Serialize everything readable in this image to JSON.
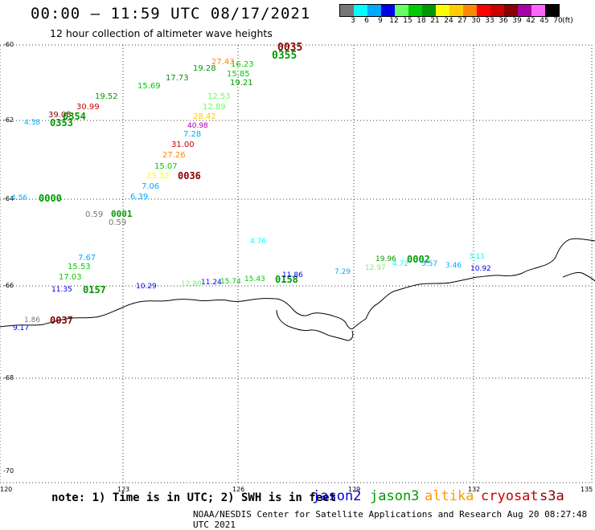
{
  "title": "00:00 – 11:59 UTC 08/17/2021",
  "subtitle": "12 hour collection of altimeter wave heights",
  "colorbar": {
    "unit": "(ft)",
    "stops": [
      {
        "label": "3",
        "color": "#777777"
      },
      {
        "label": "6",
        "color": "#00ffff"
      },
      {
        "label": "9",
        "color": "#00aaff"
      },
      {
        "label": "12",
        "color": "#0000ee"
      },
      {
        "label": "15",
        "color": "#66ff66"
      },
      {
        "label": "18",
        "color": "#00cc00"
      },
      {
        "label": "21",
        "color": "#009900"
      },
      {
        "label": "24",
        "color": "#ffff00"
      },
      {
        "label": "27",
        "color": "#ffcc00"
      },
      {
        "label": "30",
        "color": "#ff8800"
      },
      {
        "label": "33",
        "color": "#ff0000"
      },
      {
        "label": "36",
        "color": "#cc0000"
      },
      {
        "label": "39",
        "color": "#880000"
      },
      {
        "label": "42",
        "color": "#aa00aa"
      },
      {
        "label": "45",
        "color": "#ff66ff"
      },
      {
        "label": "70",
        "color": "#000000"
      }
    ]
  },
  "axes": {
    "lat_labels": [
      "-60",
      "-62",
      "-64",
      "-66",
      "-68",
      "-70"
    ],
    "lon_labels": [
      "120",
      "123",
      "126",
      "129",
      "132",
      "135"
    ]
  },
  "observations": [
    {
      "text": "0035",
      "color": "#880000"
    },
    {
      "text": "0355",
      "color": "#009900"
    },
    {
      "text": "16.23",
      "color": "#00cc00"
    },
    {
      "text": "15.85",
      "color": "#00cc00"
    },
    {
      "text": "19.21",
      "color": "#009900"
    },
    {
      "text": "12.53",
      "color": "#66ff66"
    },
    {
      "text": "12.89",
      "color": "#66ff66"
    },
    {
      "text": "28.42",
      "color": "#ffcc00"
    },
    {
      "text": "40.98",
      "color": "#aa00aa"
    },
    {
      "text": "7.28",
      "color": "#00aaff"
    },
    {
      "text": "31.00",
      "color": "#cc0000"
    },
    {
      "text": "27.26",
      "color": "#ff8800"
    },
    {
      "text": "15.07",
      "color": "#00cc00"
    },
    {
      "text": "23.32",
      "color": "#ffff00"
    },
    {
      "text": "0036",
      "color": "#880000"
    },
    {
      "text": "7.06",
      "color": "#00aaff"
    },
    {
      "text": "6.39",
      "color": "#00aaff"
    },
    {
      "text": "4.56",
      "color": "#00aaff"
    },
    {
      "text": "0000",
      "color": "#009900"
    },
    {
      "text": "0.59",
      "color": "#777777"
    },
    {
      "text": "0001",
      "color": "#009900"
    },
    {
      "text": "0.59",
      "color": "#777777"
    },
    {
      "text": "4.76",
      "color": "#00ffff"
    },
    {
      "text": "3.11",
      "color": "#00ffff"
    },
    {
      "text": "19.96",
      "color": "#009900"
    },
    {
      "text": "0002",
      "color": "#009900"
    },
    {
      "text": "12.97",
      "color": "#66ff66"
    },
    {
      "text": "4.72",
      "color": "#00ffff"
    },
    {
      "text": "5.57",
      "color": "#00aaff"
    },
    {
      "text": "3.46",
      "color": "#00aaff"
    },
    {
      "text": "10.92",
      "color": "#0000ee"
    },
    {
      "text": "7.29",
      "color": "#00aaff"
    },
    {
      "text": "7.67",
      "color": "#00aaff"
    },
    {
      "text": "15.53",
      "color": "#00cc00"
    },
    {
      "text": "17.03",
      "color": "#00cc00"
    },
    {
      "text": "0157",
      "color": "#009900"
    },
    {
      "text": "11.35",
      "color": "#0000ee"
    },
    {
      "text": "10.29",
      "color": "#0000ee"
    },
    {
      "text": "12.80",
      "color": "#66ff66"
    },
    {
      "text": "11.24",
      "color": "#0000ee"
    },
    {
      "text": "15.74",
      "color": "#00cc00"
    },
    {
      "text": "15.43",
      "color": "#00cc00"
    },
    {
      "text": "0158",
      "color": "#009900"
    },
    {
      "text": "11.86",
      "color": "#0000ee"
    },
    {
      "text": "1.86",
      "color": "#777777"
    },
    {
      "text": "0037",
      "color": "#880000"
    },
    {
      "text": "9.17",
      "color": "#0000ee"
    },
    {
      "text": "39.05",
      "color": "#880000"
    },
    {
      "text": "30.99",
      "color": "#cc0000"
    },
    {
      "text": "19.52",
      "color": "#009900"
    },
    {
      "text": "0354",
      "color": "#009900"
    },
    {
      "text": "0353",
      "color": "#009900"
    },
    {
      "text": "4.38",
      "color": "#00aaff"
    },
    {
      "text": "19.28",
      "color": "#009900"
    },
    {
      "text": "17.73",
      "color": "#009900"
    },
    {
      "text": "15.69",
      "color": "#00cc00"
    },
    {
      "text": "27.43",
      "color": "#ff8800"
    }
  ],
  "note": "note: 1) Time is in UTC; 2) SWH is in feet",
  "satellites": [
    {
      "name": "jason2",
      "color": "#0000cc"
    },
    {
      "name": "jason3",
      "color": "#009900"
    },
    {
      "name": "altika",
      "color": "#ff9900"
    },
    {
      "name": "cryosat",
      "color": "#cc0000"
    },
    {
      "name": "s3a",
      "color": "#880000"
    }
  ],
  "credit": "NOAA/NESDIS Center for Satellite Applications and Research   Aug 20 08:27:48 UTC 2021"
}
